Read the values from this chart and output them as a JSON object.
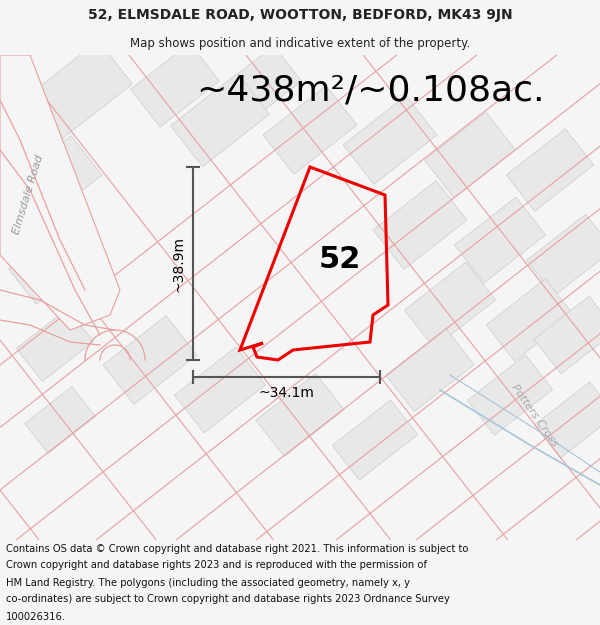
{
  "title_line1": "52, ELMSDALE ROAD, WOOTTON, BEDFORD, MK43 9JN",
  "title_line2": "Map shows position and indicative extent of the property.",
  "area_text": "~438m²/~0.108ac.",
  "label_52": "52",
  "dim_height": "~38.9m",
  "dim_width": "~34.1m",
  "road_label_1": "Elmsdale Road",
  "road_label_2": "Potters Cross",
  "footer_lines": [
    "Contains OS data © Crown copyright and database right 2021. This information is subject to",
    "Crown copyright and database rights 2023 and is reproduced with the permission of",
    "HM Land Registry. The polygons (including the associated geometry, namely x, y",
    "co-ordinates) are subject to Crown copyright and database rights 2023 Ordnance Survey",
    "100026316."
  ],
  "bg_color": "#f5f5f5",
  "map_bg": "#ffffff",
  "road_line_color": "#e8a0a0",
  "road_fill_color": "#e8e8e8",
  "plot_line_color": "#ee0000",
  "dim_line_color": "#555555",
  "text_color": "#222222",
  "road_label_color": "#aaaaaa",
  "footer_color": "#111111",
  "title_fontsize": 10,
  "subtitle_fontsize": 8.5,
  "area_fontsize": 26,
  "label_fontsize": 22,
  "dim_fontsize": 10,
  "footer_fontsize": 7.2,
  "road_label_fontsize": 8
}
